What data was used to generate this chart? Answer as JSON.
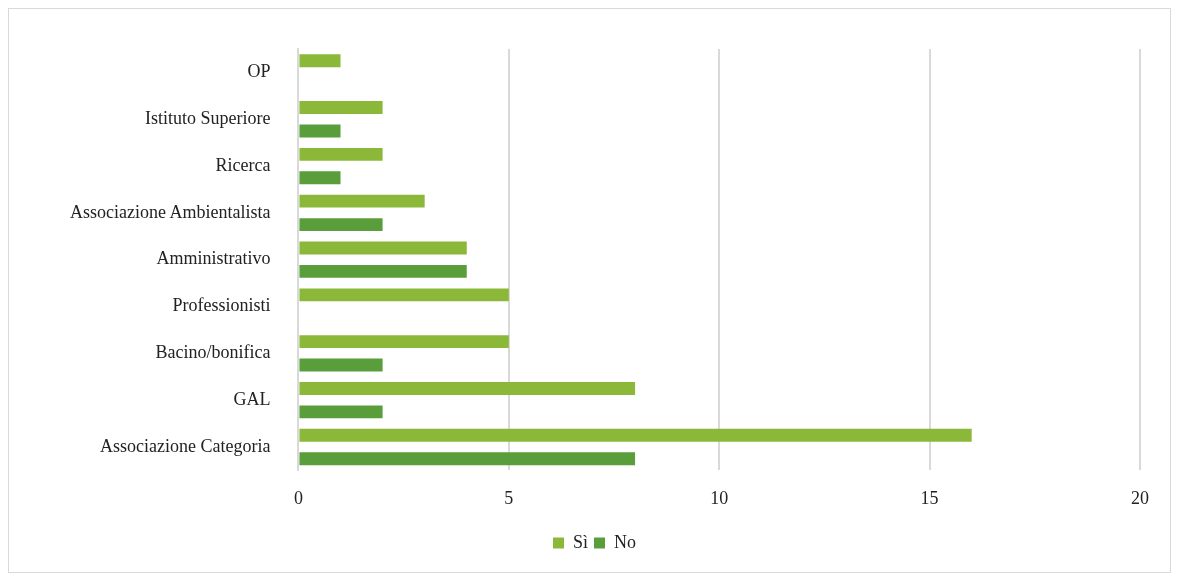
{
  "chart_data": {
    "type": "bar",
    "orientation": "horizontal",
    "categories": [
      "OP",
      "Istituto Superiore",
      "Ricerca",
      "Associazione Ambientalista",
      "Amministrativo",
      "Professionisti",
      "Bacino/bonifica",
      "GAL",
      "Associazione Categoria"
    ],
    "series": [
      {
        "name": "Sì",
        "color": "#8cb83a",
        "values": [
          1,
          2,
          2,
          3,
          4,
          5,
          5,
          8,
          16
        ]
      },
      {
        "name": "No",
        "color": "#5a9e3c",
        "values": [
          null,
          1,
          1,
          2,
          4,
          null,
          2,
          2,
          8
        ]
      }
    ],
    "xlim": [
      0,
      20
    ],
    "xticks": [
      0,
      5,
      10,
      15,
      20
    ],
    "grid": "x",
    "legend": "bottom"
  }
}
